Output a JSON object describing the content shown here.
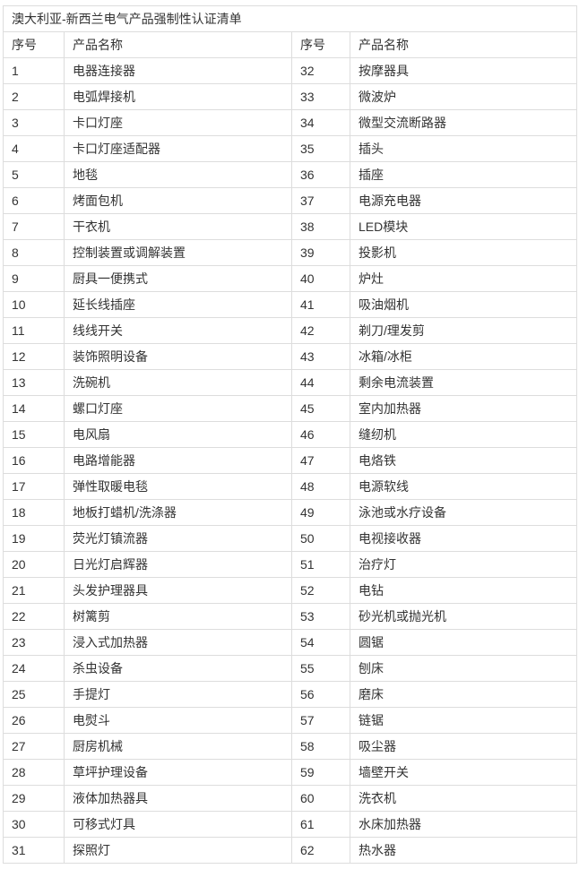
{
  "page": {
    "background": "#ffffff"
  },
  "table": {
    "title": "澳大利亚-新西兰电气产品强制性认证清单",
    "border_color": "#dddddd",
    "text_color": "#333333",
    "headers": [
      "序号",
      "产品名称",
      "序号",
      "产品名称"
    ],
    "rows": [
      {
        "no1": "1",
        "name1": "电器连接器",
        "no2": "32",
        "name2": "按摩器具"
      },
      {
        "no1": "2",
        "name1": "电弧焊接机",
        "no2": "33",
        "name2": "微波炉"
      },
      {
        "no1": "3",
        "name1": "卡口灯座",
        "no2": "34",
        "name2": "微型交流断路器"
      },
      {
        "no1": "4",
        "name1": "卡口灯座适配器",
        "no2": "35",
        "name2": "插头"
      },
      {
        "no1": "5",
        "name1": "地毯",
        "no2": "36",
        "name2": "插座"
      },
      {
        "no1": "6",
        "name1": "烤面包机",
        "no2": "37",
        "name2": "电源充电器"
      },
      {
        "no1": "7",
        "name1": "干衣机",
        "no2": "38",
        "name2": "LED模块"
      },
      {
        "no1": "8",
        "name1": "控制装置或调解装置",
        "no2": "39",
        "name2": "投影机"
      },
      {
        "no1": "9",
        "name1": "厨具一便携式",
        "no2": "40",
        "name2": "炉灶"
      },
      {
        "no1": "10",
        "name1": "延长线插座",
        "no2": "41",
        "name2": "吸油烟机"
      },
      {
        "no1": "11",
        "name1": "线线开关",
        "no2": "42",
        "name2": "剃刀/理发剪"
      },
      {
        "no1": "12",
        "name1": "装饰照明设备",
        "no2": "43",
        "name2": "冰箱/冰柜"
      },
      {
        "no1": "13",
        "name1": "洗碗机",
        "no2": "44",
        "name2": "剩余电流装置"
      },
      {
        "no1": "14",
        "name1": "螺口灯座",
        "no2": "45",
        "name2": "室内加热器"
      },
      {
        "no1": "15",
        "name1": "电风扇",
        "no2": "46",
        "name2": "缝纫机"
      },
      {
        "no1": "16",
        "name1": "电路增能器",
        "no2": "47",
        "name2": "电烙铁"
      },
      {
        "no1": "17",
        "name1": "弹性取暖电毯",
        "no2": "48",
        "name2": "电源软线"
      },
      {
        "no1": "18",
        "name1": "地板打蜡机/洗涤器",
        "no2": "49",
        "name2": "泳池或水疗设备"
      },
      {
        "no1": "19",
        "name1": "荧光灯镇流器",
        "no2": "50",
        "name2": "电视接收器"
      },
      {
        "no1": "20",
        "name1": "日光灯启辉器",
        "no2": "51",
        "name2": "治疗灯"
      },
      {
        "no1": "21",
        "name1": "头发护理器具",
        "no2": "52",
        "name2": "电钻"
      },
      {
        "no1": "22",
        "name1": "树篱剪",
        "no2": "53",
        "name2": "砂光机或抛光机"
      },
      {
        "no1": "23",
        "name1": "浸入式加热器",
        "no2": "54",
        "name2": "圆锯"
      },
      {
        "no1": "24",
        "name1": "杀虫设备",
        "no2": "55",
        "name2": "刨床"
      },
      {
        "no1": "25",
        "name1": "手提灯",
        "no2": "56",
        "name2": "磨床"
      },
      {
        "no1": "26",
        "name1": "电熨斗",
        "no2": "57",
        "name2": "链锯"
      },
      {
        "no1": "27",
        "name1": "厨房机械",
        "no2": "58",
        "name2": "吸尘器"
      },
      {
        "no1": "28",
        "name1": "草坪护理设备",
        "no2": "59",
        "name2": "墙壁开关"
      },
      {
        "no1": "29",
        "name1": "液体加热器具",
        "no2": "60",
        "name2": "洗衣机"
      },
      {
        "no1": "30",
        "name1": "可移式灯具",
        "no2": "61",
        "name2": "水床加热器"
      },
      {
        "no1": "31",
        "name1": "探照灯",
        "no2": "62",
        "name2": "热水器"
      }
    ]
  }
}
